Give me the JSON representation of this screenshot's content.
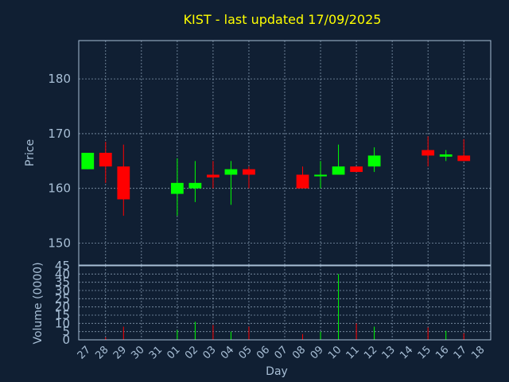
{
  "chart_data": {
    "type": "candlestick",
    "title": "KIST - last updated 17/09/2025",
    "xlabel": "Day",
    "colors": {
      "up": "#00ff00",
      "down": "#ff0000",
      "text": "#a8bfd6",
      "title": "#ffff00",
      "background": "#101f33"
    },
    "price_panel": {
      "ylabel": "Price",
      "ylim": [
        146,
        187
      ],
      "yticks": [
        150,
        160,
        170,
        180
      ],
      "grid": true
    },
    "volume_panel": {
      "ylabel": "Volume (0000)",
      "ylim": [
        0,
        45
      ],
      "yticks": [
        0,
        5,
        10,
        15,
        20,
        25,
        30,
        35,
        40,
        45
      ],
      "grid": true
    },
    "days": [
      "27",
      "28",
      "29",
      "30",
      "31",
      "01",
      "02",
      "03",
      "04",
      "05",
      "06",
      "07",
      "08",
      "09",
      "10",
      "11",
      "12",
      "13",
      "14",
      "15",
      "16",
      "17",
      "18"
    ],
    "candles": [
      {
        "day": "27",
        "open": 163.5,
        "close": 166.5,
        "high": 166.5,
        "low": 163.5,
        "volume": 0
      },
      {
        "day": "28",
        "open": 166.5,
        "close": 164.0,
        "high": 168.5,
        "low": 161.0,
        "volume": 1.5
      },
      {
        "day": "29",
        "open": 164.0,
        "close": 158.0,
        "high": 168.0,
        "low": 155.0,
        "volume": 8
      },
      {
        "day": "01",
        "open": 159.0,
        "close": 161.0,
        "high": 165.5,
        "low": 155.0,
        "volume": 6
      },
      {
        "day": "02",
        "open": 160.0,
        "close": 161.0,
        "high": 165.0,
        "low": 157.5,
        "volume": 11
      },
      {
        "day": "03",
        "open": 162.5,
        "close": 162.0,
        "high": 165.0,
        "low": 160.0,
        "volume": 9
      },
      {
        "day": "04",
        "open": 162.5,
        "close": 163.5,
        "high": 165.0,
        "low": 157.0,
        "volume": 5
      },
      {
        "day": "05",
        "open": 163.5,
        "close": 162.5,
        "high": 164.0,
        "low": 160.0,
        "volume": 8
      },
      {
        "day": "08",
        "open": 162.5,
        "close": 160.0,
        "high": 164.0,
        "low": 160.0,
        "volume": 3.5
      },
      {
        "day": "09",
        "open": 162.2,
        "close": 162.5,
        "high": 165.0,
        "low": 160.0,
        "volume": 5
      },
      {
        "day": "10",
        "open": 162.5,
        "close": 164.0,
        "high": 168.0,
        "low": 162.5,
        "volume": 40
      },
      {
        "day": "11",
        "open": 164.0,
        "close": 163.0,
        "high": 164.0,
        "low": 163.0,
        "volume": 10
      },
      {
        "day": "12",
        "open": 164.0,
        "close": 166.0,
        "high": 167.5,
        "low": 163.0,
        "volume": 8
      },
      {
        "day": "15",
        "open": 167.0,
        "close": 166.0,
        "high": 169.5,
        "low": 164.0,
        "volume": 7.5
      },
      {
        "day": "16",
        "open": 165.8,
        "close": 166.2,
        "high": 167.0,
        "low": 165.0,
        "volume": 5.5
      },
      {
        "day": "17",
        "open": 166.0,
        "close": 165.0,
        "high": 169.0,
        "low": 165.0,
        "volume": 4
      }
    ]
  }
}
